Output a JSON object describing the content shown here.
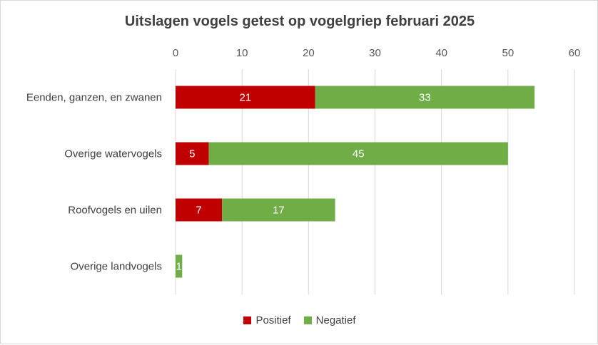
{
  "chart_data": {
    "type": "bar",
    "orientation": "horizontal",
    "stacked": true,
    "title": "Uitslagen vogels getest op vogelgriep februari 2025",
    "categories": [
      "Eenden, ganzen, en zwanen",
      "Overige watervogels",
      "Roofvogels en uilen",
      "Overige landvogels"
    ],
    "series": [
      {
        "name": "Positief",
        "color": "#c00000",
        "values": [
          21,
          5,
          7,
          0
        ]
      },
      {
        "name": "Negatief",
        "color": "#70ad47",
        "values": [
          33,
          45,
          17,
          1
        ]
      }
    ],
    "xlim": [
      0,
      60
    ],
    "xticks": [
      0,
      10,
      20,
      30,
      40,
      50,
      60
    ],
    "x_axis_position": "top",
    "grid": true,
    "data_labels": true,
    "legend_position": "bottom"
  }
}
